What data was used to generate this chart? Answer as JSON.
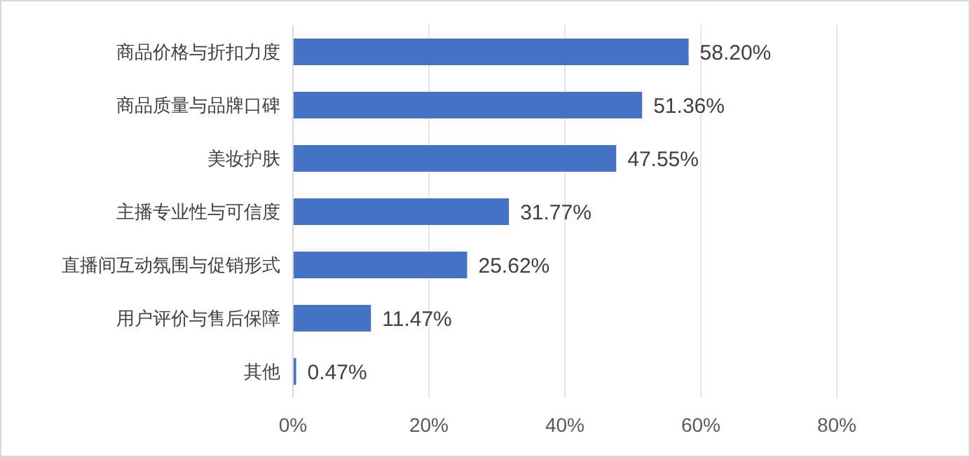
{
  "chart_data": {
    "type": "bar",
    "orientation": "horizontal",
    "categories": [
      "商品价格与折扣力度",
      "商品质量与品牌口碑",
      "美妆护肤",
      "主播专业性与可信度",
      "直播间互动氛围与促销形式",
      "用户评价与售后保障",
      "其他"
    ],
    "values": [
      58.2,
      51.36,
      47.55,
      31.77,
      25.62,
      11.47,
      0.47
    ],
    "value_labels": [
      "58.20%",
      "51.36%",
      "47.55%",
      "31.77%",
      "25.62%",
      "11.47%",
      "0.47%"
    ],
    "color": "#4472c4",
    "xlim": [
      0,
      80
    ],
    "xticks": [
      {
        "value": 0,
        "label": "0%"
      },
      {
        "value": 20,
        "label": "20%"
      },
      {
        "value": 40,
        "label": "40%"
      },
      {
        "value": 60,
        "label": "60%"
      },
      {
        "value": 80,
        "label": "80%"
      }
    ],
    "grid": "x"
  }
}
